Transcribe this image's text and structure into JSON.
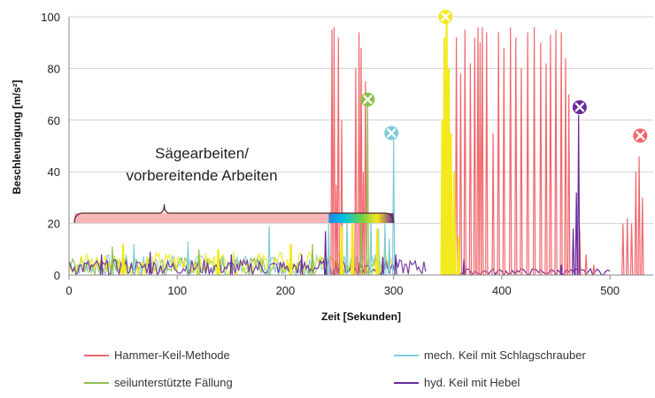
{
  "chart_data": {
    "type": "line",
    "xlabel": "Zeit [Sekunden]",
    "ylabel": "Beschleunigung [m/s²]",
    "xlim": [
      0,
      540
    ],
    "ylim": [
      0,
      100
    ],
    "x_ticks": [
      0,
      100,
      200,
      300,
      400,
      500
    ],
    "y_ticks": [
      0,
      20,
      40,
      60,
      80,
      100
    ],
    "grid": "horizontal",
    "legend_position": "bottom",
    "colors": {
      "hammer": "#f0686e",
      "mech": "#7fcbd8",
      "seil": "#8fbf4d",
      "hyd": "#6a2a9a",
      "yellow": "#f2ea1c",
      "bracket_fill": "#f8b8b8",
      "bracket_stroke": "#5a2a2a"
    },
    "series": [
      {
        "name": "Hammer-Keil-Methode",
        "key": "hammer",
        "bursts": [
          {
            "x": 243,
            "y": 95
          },
          {
            "x": 245,
            "y": 96
          },
          {
            "x": 247,
            "y": 35
          },
          {
            "x": 249,
            "y": 92
          },
          {
            "x": 252,
            "y": 60
          },
          {
            "x": 265,
            "y": 80
          },
          {
            "x": 268,
            "y": 94
          },
          {
            "x": 270,
            "y": 88
          },
          {
            "x": 272,
            "y": 40
          },
          {
            "x": 274,
            "y": 75
          },
          {
            "x": 346,
            "y": 20
          },
          {
            "x": 349,
            "y": 65
          },
          {
            "x": 352,
            "y": 40
          },
          {
            "x": 358,
            "y": 92
          },
          {
            "x": 362,
            "y": 78
          },
          {
            "x": 366,
            "y": 95
          },
          {
            "x": 371,
            "y": 82
          },
          {
            "x": 375,
            "y": 92
          },
          {
            "x": 378,
            "y": 96
          },
          {
            "x": 380,
            "y": 90
          },
          {
            "x": 382,
            "y": 96
          },
          {
            "x": 386,
            "y": 94
          },
          {
            "x": 392,
            "y": 55
          },
          {
            "x": 397,
            "y": 94
          },
          {
            "x": 402,
            "y": 88
          },
          {
            "x": 408,
            "y": 96
          },
          {
            "x": 413,
            "y": 92
          },
          {
            "x": 418,
            "y": 80
          },
          {
            "x": 424,
            "y": 94
          },
          {
            "x": 430,
            "y": 96
          },
          {
            "x": 436,
            "y": 90
          },
          {
            "x": 441,
            "y": 82
          },
          {
            "x": 445,
            "y": 93
          },
          {
            "x": 450,
            "y": 95
          },
          {
            "x": 455,
            "y": 94
          },
          {
            "x": 459,
            "y": 84
          },
          {
            "x": 462,
            "y": 70
          },
          {
            "x": 472,
            "y": 18
          },
          {
            "x": 478,
            "y": 8
          },
          {
            "x": 485,
            "y": 4
          },
          {
            "x": 512,
            "y": 20
          },
          {
            "x": 516,
            "y": 22
          },
          {
            "x": 520,
            "y": 20
          },
          {
            "x": 524,
            "y": 40
          },
          {
            "x": 527,
            "y": 46
          },
          {
            "x": 530,
            "y": 30
          }
        ],
        "marker": {
          "x": 528,
          "y": 54
        }
      },
      {
        "name": "mech. Keil mit Schlagschrauber",
        "key": "mech",
        "bursts": [
          {
            "x": 60,
            "y": 12
          },
          {
            "x": 110,
            "y": 13
          },
          {
            "x": 185,
            "y": 19
          },
          {
            "x": 240,
            "y": 20
          },
          {
            "x": 257,
            "y": 22
          },
          {
            "x": 279,
            "y": 22
          },
          {
            "x": 286,
            "y": 18
          },
          {
            "x": 292,
            "y": 20
          },
          {
            "x": 296,
            "y": 14
          },
          {
            "x": 300,
            "y": 53
          }
        ],
        "marker": {
          "x": 298,
          "y": 55
        }
      },
      {
        "name": "seilunterstützte Fällung",
        "key": "seil",
        "bursts": [
          {
            "x": 40,
            "y": 11
          },
          {
            "x": 120,
            "y": 10
          },
          {
            "x": 225,
            "y": 12
          },
          {
            "x": 262,
            "y": 14
          },
          {
            "x": 270,
            "y": 22
          },
          {
            "x": 276,
            "y": 66
          }
        ],
        "marker": {
          "x": 276,
          "y": 68
        }
      },
      {
        "name": "hyd. Keil mit Hebel",
        "key": "hyd",
        "bursts": [
          {
            "x": 30,
            "y": 8
          },
          {
            "x": 75,
            "y": 9
          },
          {
            "x": 150,
            "y": 8
          },
          {
            "x": 215,
            "y": 8
          },
          {
            "x": 237,
            "y": 17
          },
          {
            "x": 290,
            "y": 7
          },
          {
            "x": 302,
            "y": 8
          },
          {
            "x": 352,
            "y": 8
          },
          {
            "x": 365,
            "y": 6
          },
          {
            "x": 455,
            "y": 4
          },
          {
            "x": 466,
            "y": 18
          },
          {
            "x": 469,
            "y": 32
          },
          {
            "x": 471,
            "y": 62
          }
        ],
        "marker": {
          "x": 472,
          "y": 65
        }
      },
      {
        "key": "yellow",
        "bursts": [
          {
            "x": 50,
            "y": 12
          },
          {
            "x": 138,
            "y": 10
          },
          {
            "x": 205,
            "y": 12
          },
          {
            "x": 252,
            "y": 19
          },
          {
            "x": 262,
            "y": 20
          },
          {
            "x": 285,
            "y": 18
          },
          {
            "x": 345,
            "y": 60
          },
          {
            "x": 347,
            "y": 92
          },
          {
            "x": 349,
            "y": 98
          },
          {
            "x": 351,
            "y": 80
          },
          {
            "x": 353,
            "y": 55
          },
          {
            "x": 356,
            "y": 40
          },
          {
            "x": 360,
            "y": 15
          }
        ],
        "marker": {
          "x": 348,
          "y": 100
        }
      }
    ],
    "annotations": {
      "bracket_text_line1": "Sägearbeiten/",
      "bracket_text_line2": "vorbereitende Arbeiten",
      "bracket_range": [
        5,
        300
      ]
    },
    "legend": [
      {
        "label": "Hammer-Keil-Methode",
        "key": "hammer"
      },
      {
        "label": "mech. Keil mit Schlagschrauber",
        "key": "mech"
      },
      {
        "label": "seilunterstützte Fällung",
        "key": "seil"
      },
      {
        "label": "hyd. Keil mit Hebel",
        "key": "hyd"
      }
    ]
  }
}
